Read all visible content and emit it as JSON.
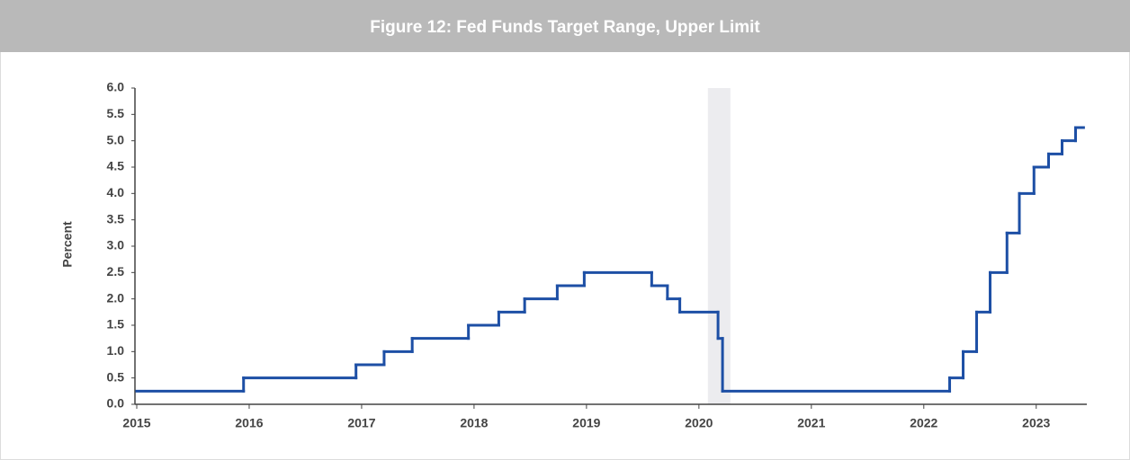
{
  "chart_data": {
    "type": "line",
    "step": "post",
    "title": "Figure 12: Fed Funds Target Range, Upper Limit",
    "y_label": "Percent",
    "x": [
      2015.0,
      2015.95,
      2016.95,
      2017.2,
      2017.45,
      2017.95,
      2018.22,
      2018.45,
      2018.74,
      2018.98,
      2019.58,
      2019.72,
      2019.83,
      2020.17,
      2020.21,
      2022.23,
      2022.35,
      2022.47,
      2022.59,
      2022.74,
      2022.85,
      2022.98,
      2023.11,
      2023.23,
      2023.35,
      2023.42
    ],
    "series": [
      {
        "color": "#1d4fa5",
        "values": [
          0.25,
          0.5,
          0.75,
          1.0,
          1.25,
          1.5,
          1.75,
          2.0,
          2.25,
          2.5,
          2.25,
          2.0,
          1.75,
          1.25,
          0.25,
          0.5,
          1.0,
          1.75,
          2.5,
          3.25,
          4.0,
          4.5,
          4.75,
          5.0,
          5.25,
          5.25
        ]
      }
    ],
    "shade": [
      2020.08,
      2020.28
    ],
    "shade_color": "#ececef",
    "xlim": [
      2015,
      2023.45
    ],
    "xticks": [
      2015,
      2016,
      2017,
      2018,
      2019,
      2020,
      2021,
      2022,
      2023
    ],
    "ylim": [
      0,
      6
    ],
    "yticks": [
      {
        "value": 0,
        "label": "0.0"
      },
      {
        "value": 0.5,
        "label": "0.5"
      },
      {
        "value": 1,
        "label": "1.0"
      },
      {
        "value": 1.5,
        "label": "1.5"
      },
      {
        "value": 2,
        "label": "2.0"
      },
      {
        "value": 2.5,
        "label": "2.5"
      },
      {
        "value": 3,
        "label": "3.0"
      },
      {
        "value": 3.5,
        "label": "3.5"
      },
      {
        "value": 4,
        "label": "4.0"
      },
      {
        "value": 4.5,
        "label": "4.5"
      },
      {
        "value": 5,
        "label": "5.0"
      },
      {
        "value": 5.5,
        "label": "5.5"
      },
      {
        "value": 6,
        "label": "6.0"
      }
    ],
    "grid": false
  }
}
